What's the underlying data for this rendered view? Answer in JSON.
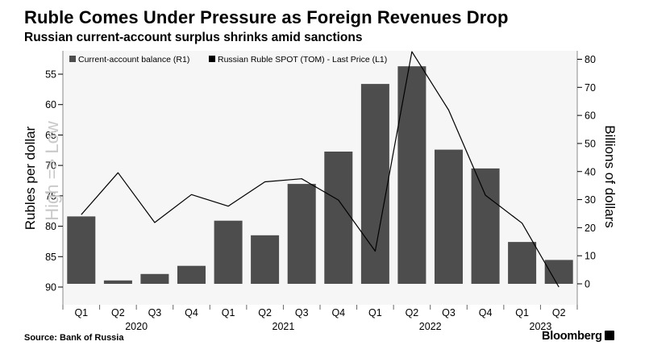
{
  "header": {
    "title": "Ruble Comes Under Pressure as Foreign Revenues Drop",
    "subtitle": "Russian current-account surplus shrinks amid sanctions"
  },
  "footer": {
    "source": "Source:  Bank of Russia",
    "brand": "Bloomberg",
    "brand_icon": "bloomberg-square-icon"
  },
  "chart_data": {
    "type": "bar",
    "categories": [
      "Q1",
      "Q2",
      "Q3",
      "Q4",
      "Q1",
      "Q2",
      "Q3",
      "Q4",
      "Q1",
      "Q2",
      "Q3",
      "Q4",
      "Q1",
      "Q2"
    ],
    "year_labels": [
      {
        "label": "2020",
        "start": 0,
        "end": 3
      },
      {
        "label": "2021",
        "start": 4,
        "end": 7
      },
      {
        "label": "2022",
        "start": 8,
        "end": 11
      },
      {
        "label": "2023",
        "start": 12,
        "end": 13
      }
    ],
    "series": [
      {
        "name": "Current-account balance (R1)",
        "type": "bar",
        "axis": "right",
        "color": "#4d4d4d",
        "values": [
          24,
          1.2,
          3.5,
          6.4,
          22.5,
          17.3,
          35.6,
          47.1,
          71.2,
          77.5,
          47.8,
          41.1,
          14.9,
          8.5
        ]
      },
      {
        "name": "Russian Ruble SPOT (TOM) - Last Price (L1)",
        "type": "line",
        "axis": "left",
        "color": "#000000",
        "values": [
          78.1,
          71.2,
          79.4,
          74.8,
          76.7,
          72.7,
          72.2,
          75.7,
          84.1,
          51.3,
          60.9,
          74.9,
          79.5,
          90
        ]
      }
    ],
    "left_axis": {
      "label": "Rubles per dollar",
      "watermark": "High => Low",
      "inverted": true,
      "ylim": [
        90,
        53
      ],
      "ticks": [
        55,
        60,
        65,
        70,
        75,
        80,
        85,
        90
      ]
    },
    "right_axis": {
      "label": "Billions of dollars",
      "ylim": [
        0,
        82
      ],
      "ticks": [
        0,
        10,
        20,
        30,
        40,
        50,
        60,
        70,
        80
      ]
    },
    "legend_position": "top-left",
    "grid": false
  }
}
